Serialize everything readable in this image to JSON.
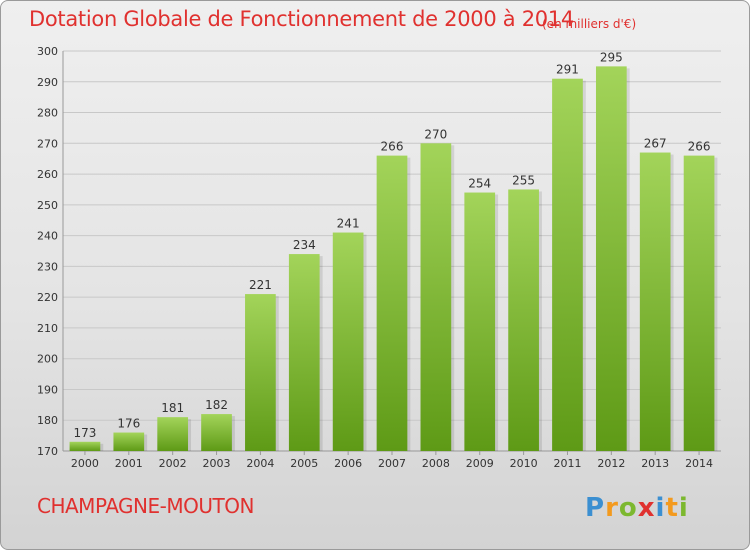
{
  "title": "Dotation Globale de Fonctionnement de 2000 à 2014",
  "subtitle": "(en milliers d'€)",
  "commune": "CHAMPAGNE-MOUTON",
  "logo_text": "Proxiti",
  "colors": {
    "title": "#e0312f",
    "bar_top": "#a3d45a",
    "bar_bottom": "#5e9a16",
    "grid": "#c8c8c8",
    "axis_text": "#333333"
  },
  "chart_data": {
    "type": "bar",
    "categories": [
      "2000",
      "2001",
      "2002",
      "2003",
      "2004",
      "2005",
      "2006",
      "2007",
      "2008",
      "2009",
      "2010",
      "2011",
      "2012",
      "2013",
      "2014"
    ],
    "values": [
      173,
      176,
      181,
      182,
      221,
      234,
      241,
      266,
      270,
      254,
      255,
      291,
      295,
      267,
      266
    ],
    "title": "Dotation Globale de Fonctionnement de 2000 à 2014",
    "subtitle": "(en milliers d'€)",
    "ylim": [
      170,
      300
    ],
    "yticks": [
      170,
      180,
      190,
      200,
      210,
      220,
      230,
      240,
      250,
      260,
      270,
      280,
      290,
      300
    ],
    "grid": true,
    "legend": "none"
  }
}
